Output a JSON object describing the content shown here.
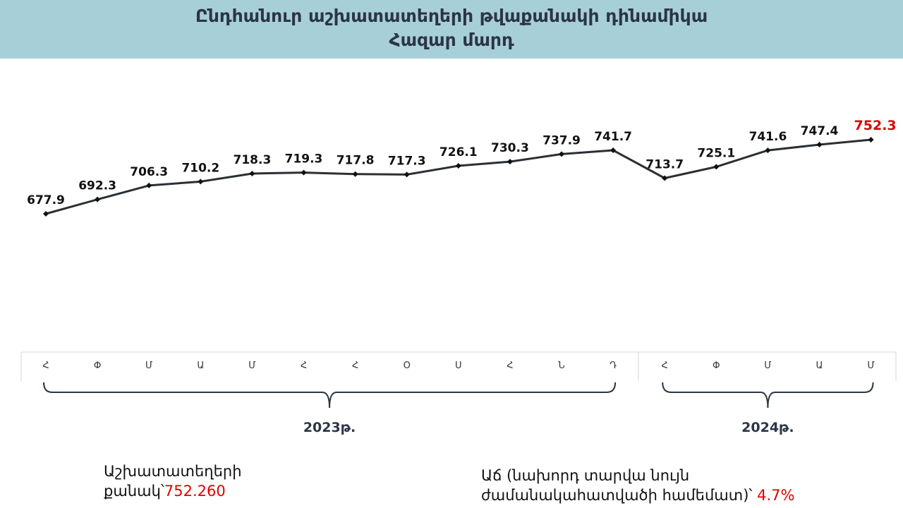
{
  "header": {
    "title_line1": "Ընդհանուր աշխատատեղերի թվաքանակի դինամիկա",
    "title_line2": "Հազար մարդ"
  },
  "chart_data": {
    "type": "line",
    "categories": [
      "Հ",
      "Փ",
      "Մ",
      "Ա",
      "Մ",
      "Հ",
      "Հ",
      "Օ",
      "Ս",
      "Հ",
      "Ն",
      "Դ",
      "Հ",
      "Փ",
      "Մ",
      "Ա",
      "Մ"
    ],
    "values": [
      677.9,
      692.3,
      706.3,
      710.2,
      718.3,
      719.3,
      717.8,
      717.3,
      726.1,
      730.3,
      737.9,
      741.7,
      713.7,
      725.1,
      741.6,
      747.4,
      752.3
    ],
    "labels": [
      "677.9",
      "692.3",
      "706.3",
      "710.2",
      "718.3",
      "719.3",
      "717.8",
      "717.3",
      "726.1",
      "730.3",
      "737.9",
      "741.7",
      "713.7",
      "725.1",
      "741.6",
      "747.4",
      "752.3"
    ],
    "groups": [
      {
        "label": "2023թ.",
        "start": 0,
        "end": 11
      },
      {
        "label": "2024թ.",
        "start": 12,
        "end": 16
      }
    ],
    "highlight_last_color": "#e00000",
    "line_color": "#2b2f36",
    "ylim": [
      600,
      800
    ]
  },
  "footer": {
    "count_label_line1": "Աշխատատեղերի",
    "count_label_line2": "քանակ՝",
    "count_value": "752.260",
    "growth_label_line1": "Աճ (նախորդ տարվա նույն",
    "growth_label_line2": "ժամանակահատվածի համեմատ)՝",
    "growth_value": "4.7%"
  }
}
